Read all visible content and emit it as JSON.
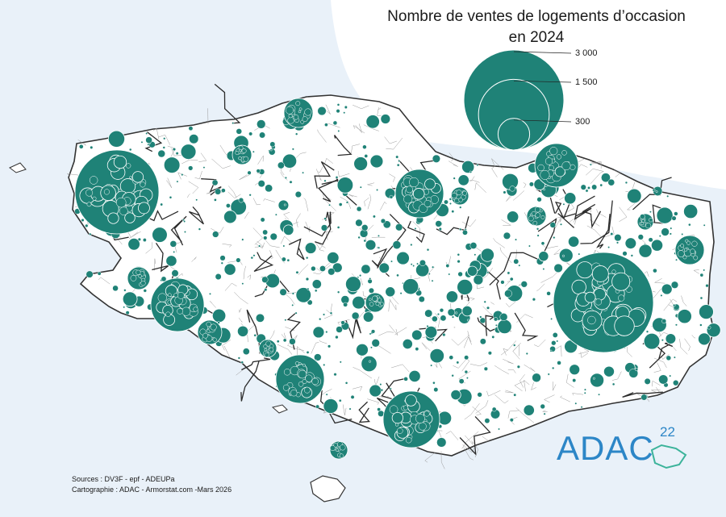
{
  "title_line1": "Nombre de ventes de logements d’occasion",
  "title_line2": "en 2024",
  "legend": {
    "values": [
      3000,
      1500,
      300
    ],
    "labels": [
      "3 000",
      "1 500",
      "300"
    ]
  },
  "colors": {
    "sea": "#e9f1f9",
    "land": "#ffffff",
    "symbol": "#1f8277",
    "boundary_major": "#2b2b2b",
    "boundary_minor": "#9a9a9a",
    "logo": "#2c86c7",
    "logo_accent": "#3bb39a"
  },
  "sources_line1": "Sources : DV3F - epf - ADEUPa",
  "sources_line2": "Cartographie : ADAC - Armorstat.com -Mars 2026",
  "logo": {
    "text": "ADAC",
    "sup": "22"
  }
}
